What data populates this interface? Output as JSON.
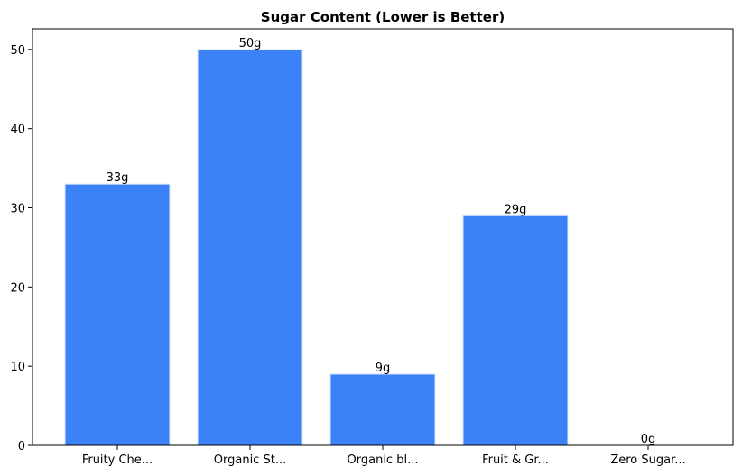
{
  "chart_data": {
    "type": "bar",
    "title": "Sugar Content (Lower is Better)",
    "categories": [
      "Fruity Che...",
      "Organic St...",
      "Organic bl...",
      "Fruit & Gr...",
      "Zero Sugar..."
    ],
    "values": [
      33,
      50,
      9,
      29,
      0
    ],
    "value_labels": [
      "33g",
      "50g",
      "9g",
      "29g",
      "0g"
    ],
    "color": "#3b82f6",
    "ylim": [
      0,
      52.6
    ],
    "yticks": [
      0,
      10,
      20,
      30,
      40,
      50
    ],
    "grid": false
  }
}
